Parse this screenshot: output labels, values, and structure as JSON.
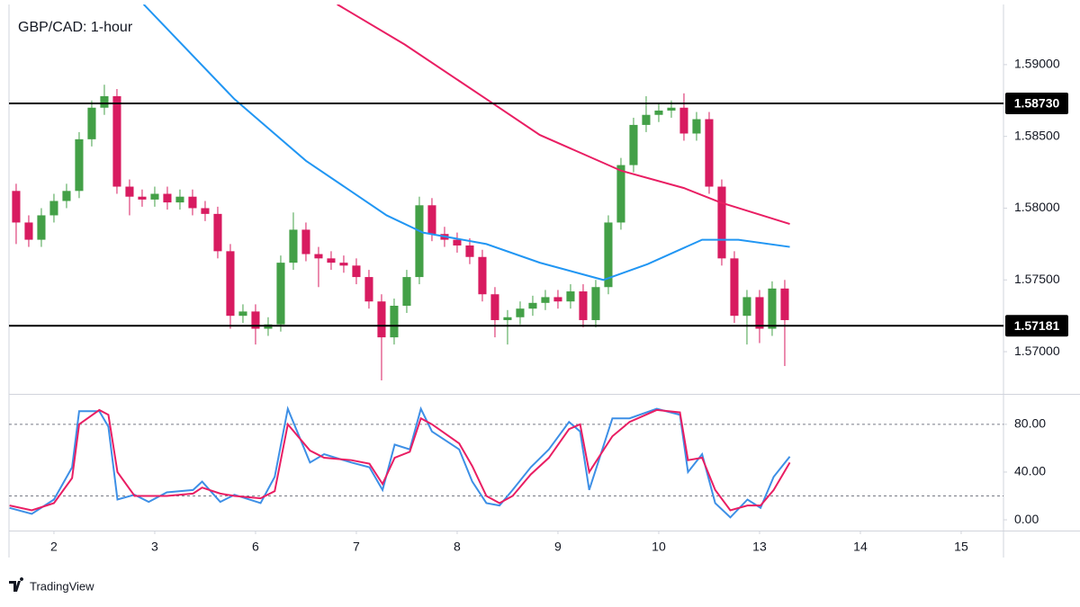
{
  "chart_data": [
    {
      "type": "candlestick",
      "title": "GBP/CAD: 1-hour",
      "up_color": "#43a047",
      "down_color": "#d81b60",
      "x": [
        -0.375,
        -0.25,
        -0.125,
        0,
        0.125,
        0.25,
        0.375,
        0.5,
        0.625,
        0.75,
        0.875,
        1,
        1.125,
        1.25,
        1.375,
        1.5,
        1.625,
        1.75,
        1.875,
        2,
        2.125,
        2.25,
        2.375,
        2.5,
        2.625,
        2.75,
        2.875,
        3,
        3.125,
        3.25,
        3.375,
        3.5,
        3.625,
        3.75,
        3.875,
        4,
        4.125,
        4.25,
        4.375,
        4.5,
        4.625,
        4.75,
        4.875,
        5,
        5.125,
        5.25,
        5.375,
        5.5,
        5.625,
        5.75,
        5.875,
        6,
        6.125,
        6.25,
        6.375,
        6.5,
        6.625,
        6.75,
        6.875,
        7,
        7.125,
        7.25
      ],
      "open": [
        1.5812,
        1.579,
        1.5778,
        1.5795,
        1.5805,
        1.5812,
        1.5848,
        1.587,
        1.5878,
        1.5815,
        1.5808,
        1.5806,
        1.581,
        1.5804,
        1.5808,
        1.58,
        1.5796,
        1.577,
        1.5725,
        1.5728,
        1.5716,
        1.5719,
        1.5762,
        1.5785,
        1.5768,
        1.5765,
        1.5762,
        1.576,
        1.5752,
        1.5735,
        1.571,
        1.5732,
        1.5752,
        1.5802,
        1.5782,
        1.5778,
        1.5774,
        1.5766,
        1.574,
        1.5722,
        1.5724,
        1.573,
        1.5734,
        1.5738,
        1.5735,
        1.5742,
        1.5722,
        1.5745,
        1.579,
        1.583,
        1.5858,
        1.5865,
        1.5868,
        1.587,
        1.5852,
        1.5862,
        1.5815,
        1.5765,
        1.5725,
        1.5738,
        1.5716,
        1.5744
      ],
      "high": [
        1.5817,
        1.5795,
        1.58,
        1.581,
        1.5817,
        1.5853,
        1.5875,
        1.5886,
        1.5883,
        1.582,
        1.5813,
        1.5815,
        1.5815,
        1.5813,
        1.5813,
        1.5805,
        1.5801,
        1.5775,
        1.5733,
        1.5733,
        1.5724,
        1.5767,
        1.5797,
        1.579,
        1.5773,
        1.577,
        1.5767,
        1.5765,
        1.5757,
        1.574,
        1.5737,
        1.5757,
        1.5808,
        1.5807,
        1.5787,
        1.5783,
        1.5779,
        1.5771,
        1.5745,
        1.5729,
        1.5735,
        1.5739,
        1.5743,
        1.5743,
        1.5747,
        1.5747,
        1.575,
        1.5795,
        1.5835,
        1.5863,
        1.5878,
        1.5873,
        1.5875,
        1.588,
        1.5867,
        1.5867,
        1.582,
        1.577,
        1.5743,
        1.5743,
        1.5749,
        1.575
      ],
      "low": [
        1.5775,
        1.5773,
        1.5773,
        1.579,
        1.58,
        1.5807,
        1.5843,
        1.5865,
        1.581,
        1.5795,
        1.5801,
        1.5801,
        1.5799,
        1.5799,
        1.5795,
        1.5791,
        1.5765,
        1.5716,
        1.572,
        1.5705,
        1.5711,
        1.5714,
        1.5757,
        1.5763,
        1.5745,
        1.5757,
        1.5755,
        1.5747,
        1.573,
        1.568,
        1.5705,
        1.5727,
        1.5747,
        1.5777,
        1.5773,
        1.5769,
        1.5761,
        1.5735,
        1.571,
        1.5705,
        1.5719,
        1.5725,
        1.5729,
        1.573,
        1.573,
        1.5717,
        1.5717,
        1.574,
        1.5785,
        1.5825,
        1.5853,
        1.586,
        1.5863,
        1.5847,
        1.5847,
        1.581,
        1.576,
        1.572,
        1.5705,
        1.5706,
        1.5711,
        1.569
      ],
      "close": [
        1.579,
        1.5778,
        1.5795,
        1.5805,
        1.5812,
        1.5848,
        1.587,
        1.5878,
        1.5815,
        1.5808,
        1.5806,
        1.581,
        1.5804,
        1.5808,
        1.58,
        1.5796,
        1.577,
        1.5725,
        1.5728,
        1.5716,
        1.5719,
        1.5762,
        1.5785,
        1.5768,
        1.5765,
        1.5762,
        1.576,
        1.5752,
        1.5735,
        1.571,
        1.5732,
        1.5752,
        1.5802,
        1.5782,
        1.5778,
        1.5774,
        1.5766,
        1.574,
        1.5722,
        1.5724,
        1.573,
        1.5734,
        1.5738,
        1.5735,
        1.5742,
        1.5722,
        1.5745,
        1.579,
        1.583,
        1.5858,
        1.5865,
        1.5868,
        1.587,
        1.5852,
        1.5862,
        1.5815,
        1.5765,
        1.5725,
        1.5738,
        1.5716,
        1.5744,
        1.5722
      ],
      "ma_lines": [
        {
          "color": "#2196f3",
          "x": [
            0.89,
            1.79,
            2.5,
            3.3,
            3.66,
            4.29,
            4.82,
            5.45,
            5.89,
            6.43,
            6.79,
            7.3
          ],
          "values": [
            1.5942,
            1.5876,
            1.5833,
            1.5795,
            1.5783,
            1.5775,
            1.5762,
            1.575,
            1.5761,
            1.5778,
            1.5778,
            1.5773
          ]
        },
        {
          "color": "#e91e63",
          "x": [
            2.81,
            3.48,
            4.29,
            4.82,
            5.63,
            6.25,
            6.61,
            7.3
          ],
          "values": [
            1.5942,
            1.5914,
            1.5876,
            1.5851,
            1.5826,
            1.5814,
            1.5804,
            1.5789
          ]
        }
      ],
      "levels": [
        {
          "value": 1.5873,
          "label": "1.58730"
        },
        {
          "value": 1.57181,
          "label": "1.57181"
        }
      ],
      "xlim": [
        -0.446,
        9.42
      ],
      "xticks": [
        {
          "value": 0,
          "label": "2"
        },
        {
          "value": 1,
          "label": "3"
        },
        {
          "value": 2,
          "label": "6"
        },
        {
          "value": 3,
          "label": "7"
        },
        {
          "value": 4,
          "label": "8"
        },
        {
          "value": 5,
          "label": "9"
        },
        {
          "value": 6,
          "label": "10"
        },
        {
          "value": 7,
          "label": "13"
        },
        {
          "value": 8,
          "label": "14"
        },
        {
          "value": 9,
          "label": "15"
        }
      ],
      "ylim": [
        1.56706,
        1.59419
      ],
      "yticks": [
        {
          "value": 1.59,
          "label": "1.59000"
        },
        {
          "value": 1.585,
          "label": "1.58500"
        },
        {
          "value": 1.58,
          "label": "1.58000"
        },
        {
          "value": 1.575,
          "label": "1.57500"
        },
        {
          "value": 1.57,
          "label": "1.57000"
        }
      ]
    },
    {
      "type": "line",
      "x": [
        -0.44,
        -0.22,
        0,
        0.18,
        0.25,
        0.45,
        0.54,
        0.63,
        0.8,
        0.94,
        1.12,
        1.38,
        1.47,
        1.65,
        1.79,
        2.05,
        2.19,
        2.32,
        2.54,
        2.68,
        2.95,
        3.13,
        3.26,
        3.38,
        3.53,
        3.64,
        3.75,
        4.02,
        4.15,
        4.29,
        4.42,
        4.55,
        4.73,
        4.91,
        5.11,
        5.22,
        5.31,
        5.54,
        5.71,
        5.98,
        6.21,
        6.29,
        6.43,
        6.56,
        6.71,
        6.88,
        7.01,
        7.14,
        7.3
      ],
      "series": [
        {
          "color": "#3d8fe6",
          "values": [
            10,
            5,
            17,
            44,
            91,
            91,
            78,
            17,
            21,
            15,
            23,
            25,
            32,
            15,
            21,
            14,
            36,
            93,
            48,
            55,
            48,
            44,
            25,
            63,
            59,
            93,
            74,
            59,
            32,
            14,
            12,
            25,
            44,
            59,
            82,
            74,
            25,
            85,
            85,
            93,
            88,
            40,
            55,
            14,
            2,
            17,
            10,
            36,
            53
          ]
        },
        {
          "color": "#e91e63",
          "values": [
            12,
            8,
            14,
            35,
            80,
            92,
            88,
            40,
            20,
            20,
            20,
            22,
            27,
            22,
            20,
            18,
            24,
            80,
            58,
            52,
            50,
            47,
            30,
            52,
            57,
            85,
            80,
            64,
            45,
            20,
            14,
            20,
            38,
            52,
            76,
            80,
            40,
            70,
            82,
            92,
            90,
            50,
            52,
            25,
            8,
            12,
            12,
            25,
            48
          ]
        }
      ],
      "levels": [
        80,
        20
      ],
      "ylim": [
        -9,
        104
      ],
      "yticks": [
        {
          "value": 80,
          "label": "80.00"
        },
        {
          "value": 40,
          "label": "40.00"
        },
        {
          "value": 0,
          "label": "0.00"
        }
      ]
    }
  ],
  "footer": {
    "brand": "TradingView"
  }
}
